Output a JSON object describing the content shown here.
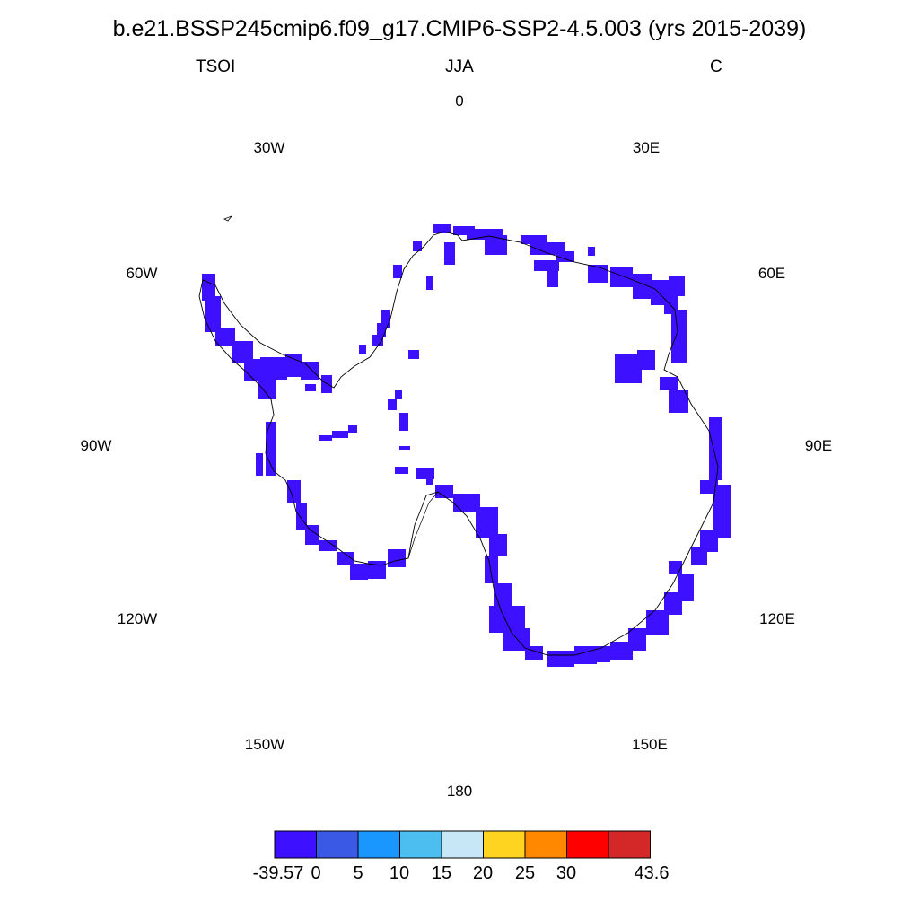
{
  "title": "b.e21.BSSP245cmip6.f09_g17.CMIP6-SSP2-4.5.003 (yrs 2015-2039)",
  "subtitle": {
    "variable": "TSOI",
    "season": "JJA",
    "units": "C"
  },
  "lon_labels": {
    "lon_0": "0",
    "lon_30e": "30E",
    "lon_60e": "60E",
    "lon_90e": "90E",
    "lon_120e": "120E",
    "lon_150e": "150E",
    "lon_180": "180",
    "lon_150w": "150W",
    "lon_120w": "120W",
    "lon_90w": "90W",
    "lon_60w": "60W",
    "lon_30w": "30W"
  },
  "field_color": "#3d10ff",
  "colorbar": {
    "colors": [
      "#3d10ff",
      "#3a5ae6",
      "#1a96ff",
      "#4cbff0",
      "#c7e6f6",
      "#ffd420",
      "#ff8800",
      "#ff0000",
      "#d42828"
    ],
    "labels": [
      "-39.57",
      "0",
      "5",
      "10",
      "15",
      "20",
      "25",
      "30",
      "43.6"
    ]
  }
}
